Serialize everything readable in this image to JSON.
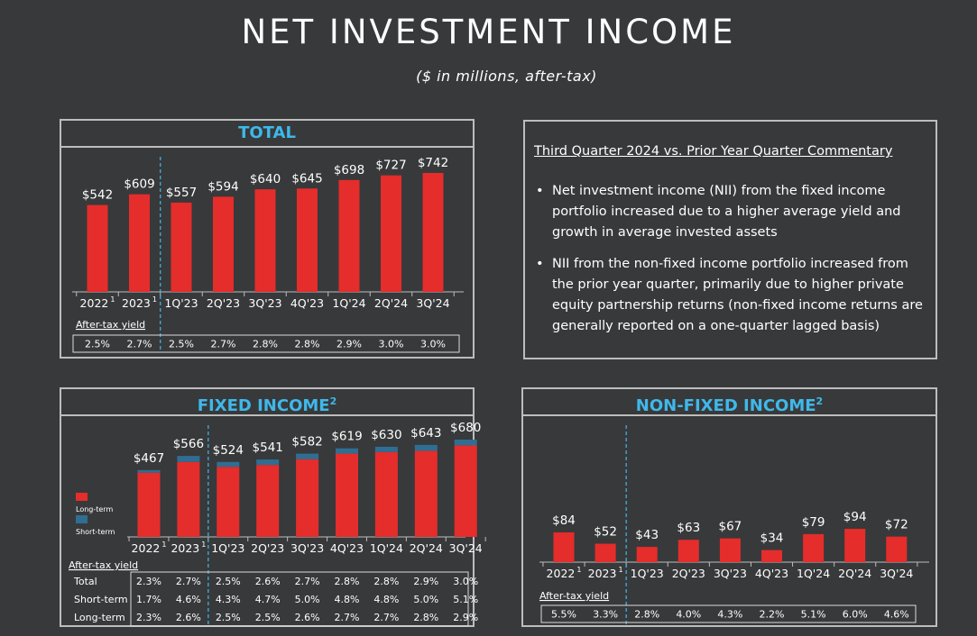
{
  "page": {
    "title": "NET INVESTMENT INCOME",
    "subtitle": "($ in millions, after-tax)"
  },
  "colors": {
    "background": "#38393b",
    "bar_red": "#e52d2b",
    "bar_blue": "#2f6e92",
    "heading_blue": "#3fb8ea",
    "border": "#bdbdbd"
  },
  "commentary": {
    "heading": "Third Quarter 2024 vs. Prior Year Quarter Commentary",
    "bullets": [
      "Net investment income (NII) from the fixed income portfolio increased due to a higher average yield and growth in average invested assets",
      "NII from the non-fixed income portfolio increased from the prior year quarter, primarily due to higher private equity partnership returns (non-fixed income returns are generally reported on a one-quarter lagged basis)"
    ]
  },
  "chart_data": [
    {
      "id": "total",
      "type": "bar",
      "title": "TOTAL",
      "title_sup": "",
      "categories": [
        "2022",
        "2023",
        "1Q'23",
        "2Q'23",
        "3Q'23",
        "4Q'23",
        "1Q'24",
        "2Q'24",
        "3Q'24"
      ],
      "category_superscripts": [
        "1",
        "1",
        "",
        "",
        "",
        "",
        "",
        "",
        ""
      ],
      "values": [
        542,
        609,
        557,
        594,
        640,
        645,
        698,
        727,
        742
      ],
      "value_labels": [
        "$542",
        "$609",
        "$557",
        "$594",
        "$640",
        "$645",
        "$698",
        "$727",
        "$742"
      ],
      "yield_label": "After-tax yield",
      "yield_rows": [
        {
          "label": "",
          "values": [
            "2.5%",
            "2.7%",
            "2.5%",
            "2.7%",
            "2.8%",
            "2.8%",
            "2.9%",
            "3.0%",
            "3.0%"
          ]
        }
      ]
    },
    {
      "id": "fixed",
      "type": "bar",
      "stacked": true,
      "title": "FIXED INCOME",
      "title_sup": "2",
      "categories": [
        "2022",
        "2023",
        "1Q'23",
        "2Q'23",
        "3Q'23",
        "4Q'23",
        "1Q'24",
        "2Q'24",
        "3Q'24"
      ],
      "category_superscripts": [
        "1",
        "1",
        "",
        "",
        "",
        "",
        "",
        "",
        ""
      ],
      "totals": [
        467,
        566,
        524,
        541,
        582,
        619,
        630,
        643,
        680
      ],
      "value_labels": [
        "$467",
        "$566",
        "$524",
        "$541",
        "$582",
        "$619",
        "$630",
        "$643",
        "$680"
      ],
      "series": [
        {
          "name": "Long-term",
          "values": [
            449,
            524,
            490,
            503,
            543,
            582,
            593,
            602,
            640
          ]
        },
        {
          "name": "Short-term",
          "values": [
            18,
            42,
            34,
            38,
            39,
            37,
            37,
            41,
            40
          ]
        }
      ],
      "legend_position": "left",
      "yield_label": "After-tax yield",
      "yield_rows": [
        {
          "label": "Total",
          "values": [
            "2.3%",
            "2.7%",
            "2.5%",
            "2.6%",
            "2.7%",
            "2.8%",
            "2.8%",
            "2.9%",
            "3.0%"
          ]
        },
        {
          "label": "Short-term",
          "values": [
            "1.7%",
            "4.6%",
            "4.3%",
            "4.7%",
            "5.0%",
            "4.8%",
            "4.8%",
            "5.0%",
            "5.1%"
          ]
        },
        {
          "label": "Long-term",
          "values": [
            "2.3%",
            "2.6%",
            "2.5%",
            "2.5%",
            "2.6%",
            "2.7%",
            "2.7%",
            "2.8%",
            "2.9%"
          ]
        }
      ]
    },
    {
      "id": "nonfixed",
      "type": "bar",
      "title": "NON-FIXED INCOME",
      "title_sup": "2",
      "categories": [
        "2022",
        "2023",
        "1Q'23",
        "2Q'23",
        "3Q'23",
        "4Q'23",
        "1Q'24",
        "2Q'24",
        "3Q'24"
      ],
      "category_superscripts": [
        "1",
        "1",
        "",
        "",
        "",
        "",
        "",
        "",
        ""
      ],
      "values": [
        84,
        52,
        43,
        63,
        67,
        34,
        79,
        94,
        72
      ],
      "value_labels": [
        "$84",
        "$52",
        "$43",
        "$63",
        "$67",
        "$34",
        "$79",
        "$94",
        "$72"
      ],
      "yield_label": "After-tax yield",
      "yield_rows": [
        {
          "label": "",
          "values": [
            "5.5%",
            "3.3%",
            "2.8%",
            "4.0%",
            "4.3%",
            "2.2%",
            "5.1%",
            "6.0%",
            "4.6%"
          ]
        }
      ]
    }
  ]
}
